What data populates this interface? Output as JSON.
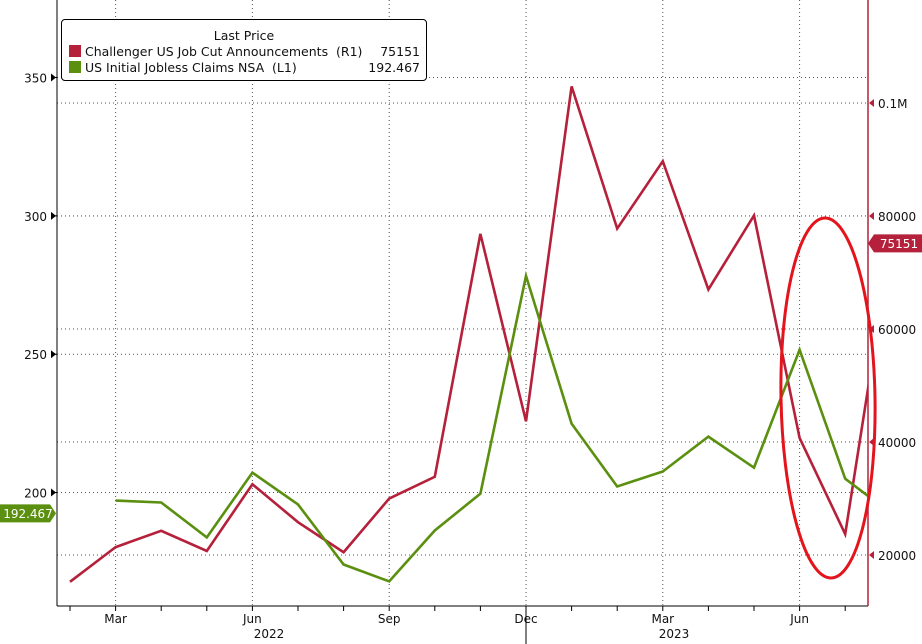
{
  "chart_data": {
    "type": "line",
    "title": "",
    "legend": {
      "title": "Last Price",
      "placement": "top-left",
      "entries": [
        {
          "label": "Challenger US Job Cut Announcements  (R1)",
          "value": "75151",
          "color": "#b5203a"
        },
        {
          "label": "US Initial Jobless Claims NSA  (L1)",
          "value": "192.467",
          "color": "#5a8f0f"
        }
      ]
    },
    "x": [
      "2022-02",
      "2022-03",
      "2022-04",
      "2022-05",
      "2022-06",
      "2022-07",
      "2022-08",
      "2022-09",
      "2022-10",
      "2022-11",
      "2022-12",
      "2023-01",
      "2023-02",
      "2023-03",
      "2023-04",
      "2023-05",
      "2023-06",
      "2023-07",
      "2023-08"
    ],
    "x_tick_labels": [
      "Mar",
      "Jun",
      "Sep",
      "Dec",
      "Mar",
      "Jun"
    ],
    "x_tick_months": [
      "2022-03",
      "2022-06",
      "2022-09",
      "2022-12",
      "2023-03",
      "2023-06"
    ],
    "year_labels": [
      "2022",
      "2023"
    ],
    "series": [
      {
        "name": "Challenger US Job Cut Announcements  (R1)",
        "axis": "right",
        "color": "#b5203a",
        "values": [
          15245,
          21387,
          24286,
          20712,
          32517,
          25810,
          20485,
          29989,
          33843,
          76835,
          43651,
          102943,
          77770,
          89703,
          66995,
          80089,
          40709,
          23697,
          75151
        ]
      },
      {
        "name": "US Initial Jobless Claims NSA  (L1)",
        "axis": "left",
        "color": "#5a8f0f",
        "values": [
          null,
          197.1,
          196.4,
          183.8,
          207.2,
          195.7,
          174.0,
          167.9,
          186.3,
          199.6,
          278.3,
          224.9,
          202.2,
          207.6,
          220.2,
          209.0,
          251.6,
          205.0,
          192.467
        ]
      }
    ],
    "left_axis": {
      "ticks": [
        200,
        250,
        300,
        350
      ],
      "tick_labels": [
        "200",
        "250",
        "300",
        "350"
      ],
      "range": [
        159,
        378
      ]
    },
    "right_axis": {
      "ticks": [
        20000,
        40000,
        60000,
        80000,
        100000
      ],
      "tick_labels": [
        "20000",
        "40000",
        "60000",
        "80000",
        "0.1M"
      ],
      "range": [
        10970,
        118230
      ],
      "color": "#b5203a"
    },
    "last_value_tags": {
      "right": "75151",
      "left": "192.467"
    },
    "annotation": {
      "type": "ellipse",
      "color": "#e3141c",
      "around": [
        "2023-07",
        "2023-08"
      ]
    },
    "grid": true
  }
}
